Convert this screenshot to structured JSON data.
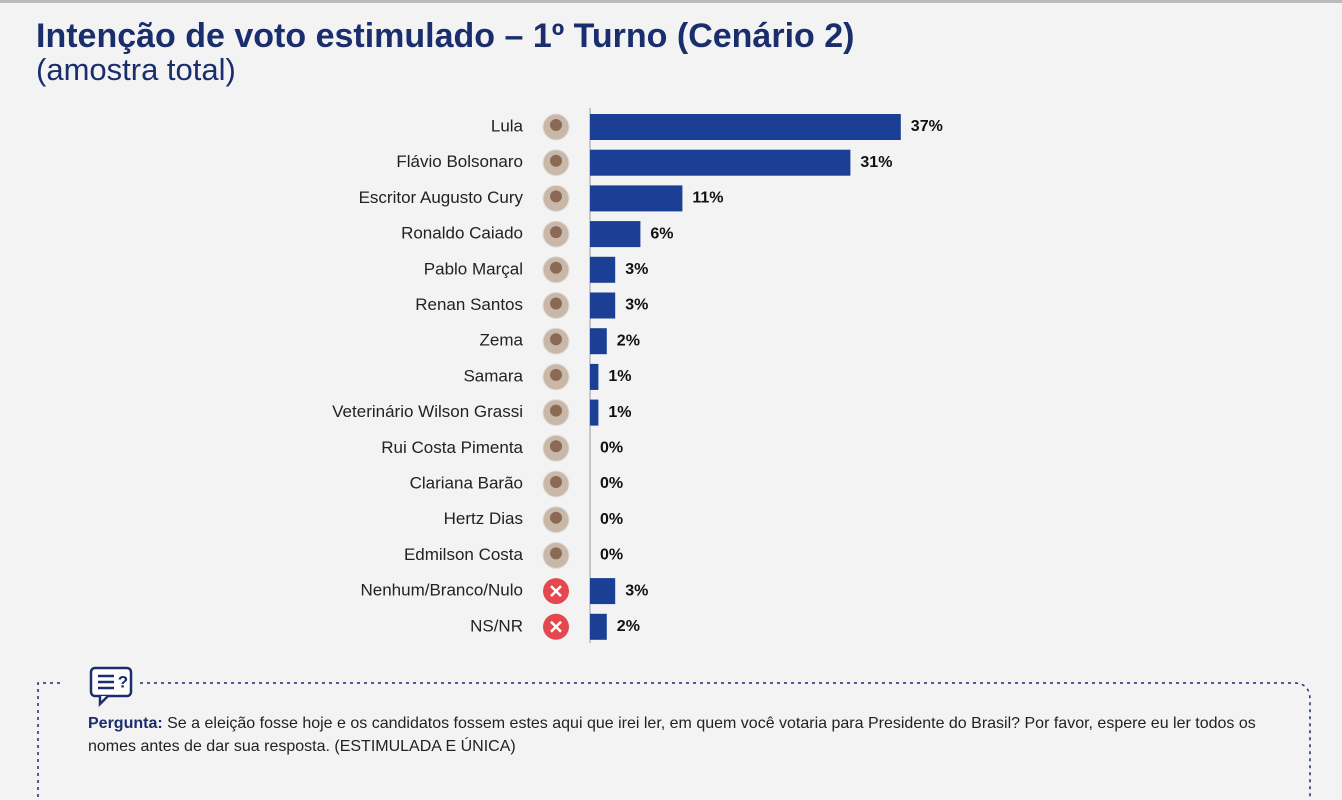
{
  "chart_data": {
    "type": "bar",
    "orientation": "horizontal",
    "title": "Intenção de voto estimulado – 1º Turno (Cenário 2)",
    "subtitle": "(amostra total)",
    "categories": [
      "Lula",
      "Flávio Bolsonaro",
      "Escritor Augusto Cury",
      "Ronaldo Caiado",
      "Pablo Marçal",
      "Renan Santos",
      "Zema",
      "Samara",
      "Veterinário Wilson Grassi",
      "Rui Costa Pimenta",
      "Clariana Barão",
      "Hertz Dias",
      "Edmilson Costa",
      "Nenhum/Branco/Nulo",
      "NS/NR"
    ],
    "values": [
      37,
      31,
      11,
      6,
      3,
      3,
      2,
      1,
      1,
      0,
      0,
      0,
      0,
      3,
      2
    ],
    "value_labels": [
      "37%",
      "31%",
      "11%",
      "6%",
      "3%",
      "3%",
      "2%",
      "1%",
      "1%",
      "0%",
      "0%",
      "0%",
      "0%",
      "3%",
      "2%"
    ],
    "color": "#1a3f94"
  },
  "question": {
    "label": "Pergunta:",
    "text": "Se a eleição fosse hoje e os candidatos fossem estes aqui que irei ler, em quem você votaria para Presidente do Brasil? Por favor, espere eu ler todos os nomes antes de dar sua resposta. (ESTIMULADA E ÚNICA)"
  }
}
